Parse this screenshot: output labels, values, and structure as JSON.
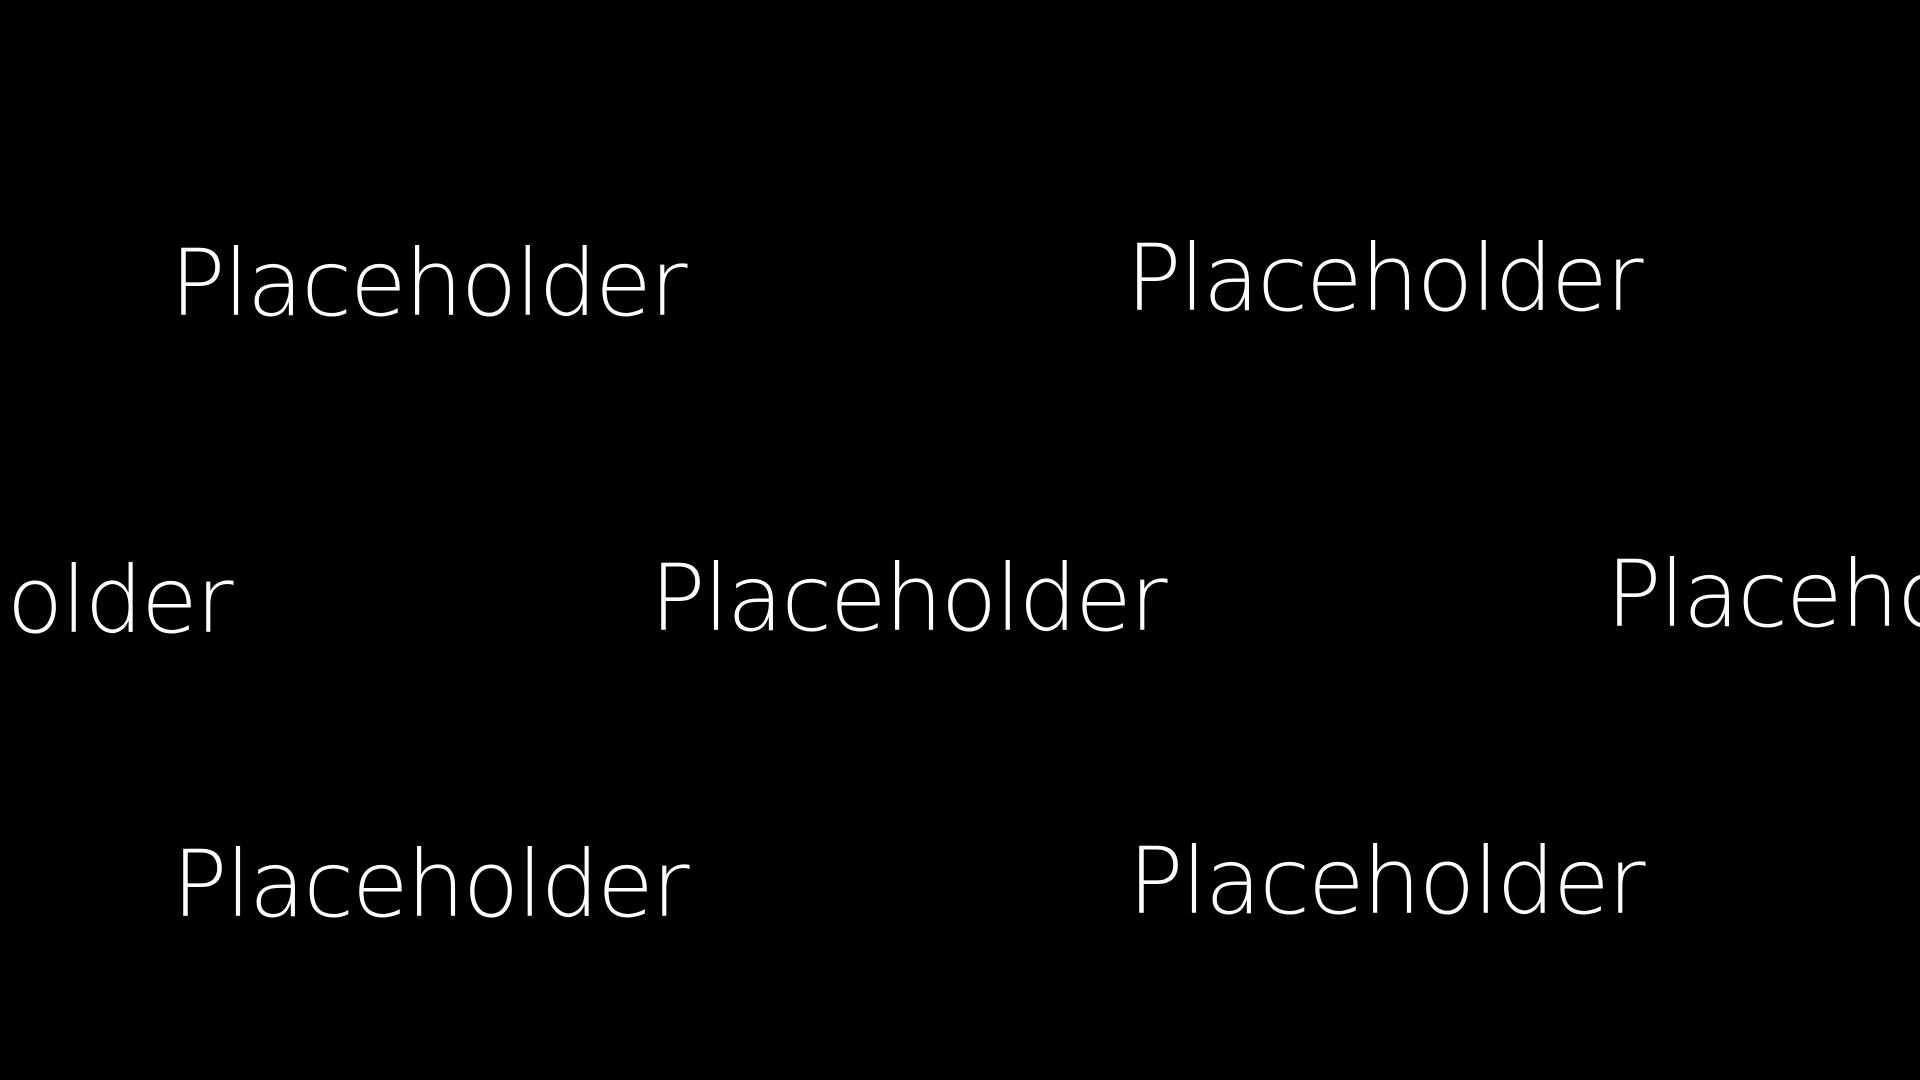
{
  "background_color": "#000000",
  "text_color": "#ffffff",
  "words": [
    "Placeholder",
    "Placeholder",
    "Placeholder",
    "Placeholder",
    "Placeholder",
    "Placeholder",
    "Placeholder"
  ]
}
